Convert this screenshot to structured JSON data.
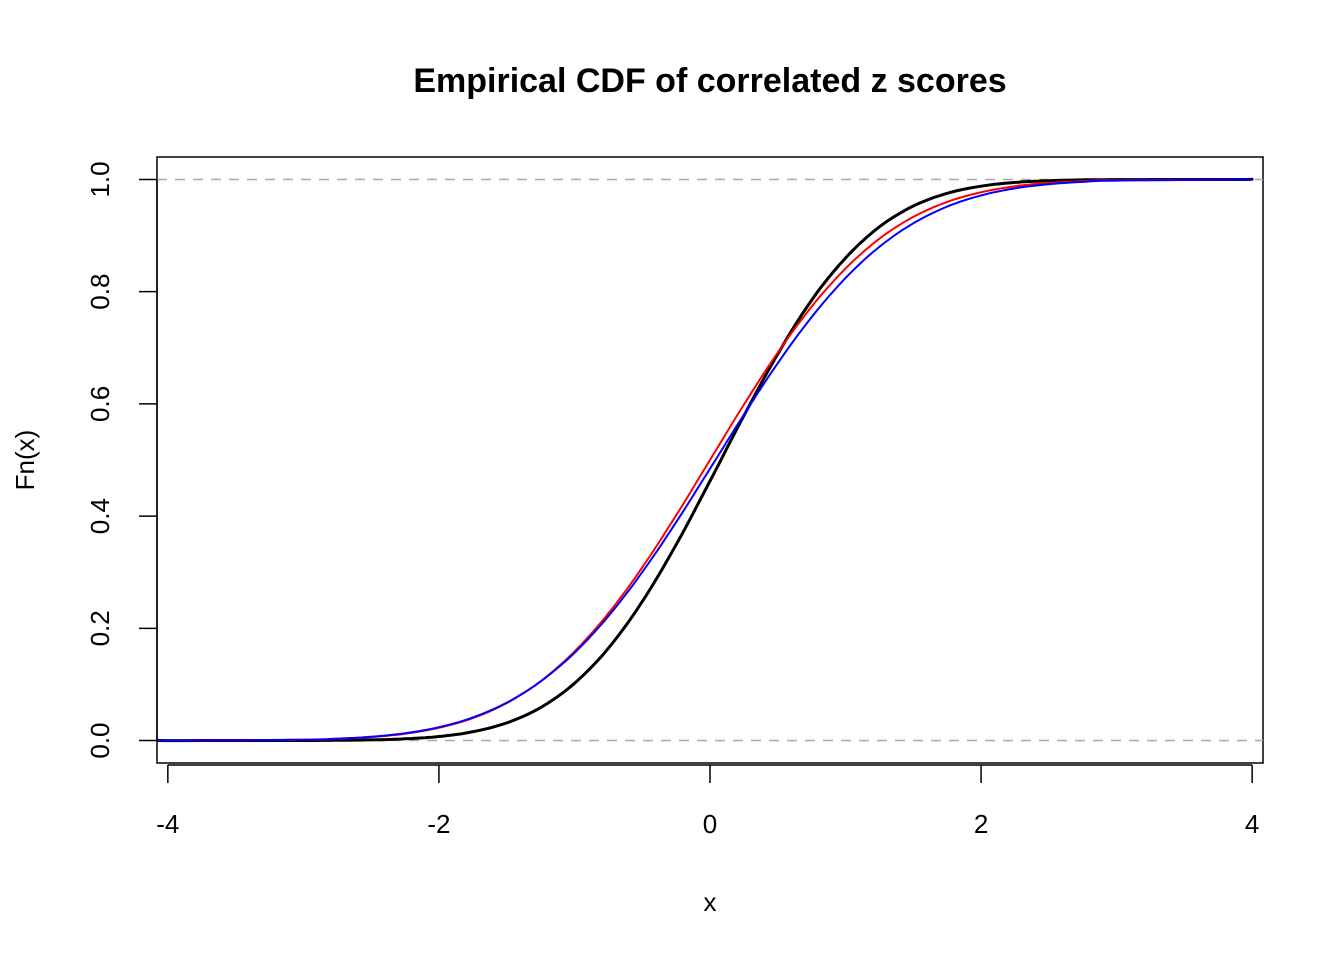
{
  "chart_data": {
    "type": "line",
    "title": "Empirical CDF of correlated z scores",
    "xlabel": "x",
    "ylabel": "Fn(x)",
    "xlim": [
      -4.08,
      4.08
    ],
    "ylim": [
      -0.04,
      1.04
    ],
    "xticks": [
      "-4",
      "-2",
      "0",
      "2",
      "4"
    ],
    "xtick_values": [
      -4,
      -2,
      0,
      2,
      4
    ],
    "yticks": [
      "0.0",
      "0.2",
      "0.4",
      "0.6",
      "0.8",
      "1.0"
    ],
    "ytick_values": [
      0,
      0.2,
      0.4,
      0.6,
      0.8,
      1.0
    ],
    "grid": false,
    "reference_lines": [
      0,
      1
    ],
    "reference_line_color": "#aaaaaa",
    "x": [
      -4,
      -3,
      -2.75,
      -2.5,
      -2.25,
      -2,
      -1.75,
      -1.5,
      -1.25,
      -1,
      -0.75,
      -0.5,
      -0.25,
      0,
      0.25,
      0.5,
      0.75,
      1,
      1.25,
      1.5,
      1.75,
      2,
      2.25,
      2.5,
      2.75,
      3,
      4
    ],
    "series": [
      {
        "color": "#000000",
        "values": [
          0,
          0.0001,
          0.0005,
          0.0012,
          0.0031,
          0.0072,
          0.0157,
          0.0315,
          0.0588,
          0.102,
          0.1645,
          0.2476,
          0.349,
          0.4625,
          0.579,
          0.689,
          0.785,
          0.86,
          0.9156,
          0.9526,
          0.9753,
          0.988,
          0.9947,
          0.9978,
          0.9992,
          0.9997,
          1
        ]
      },
      {
        "color": "#ff0000",
        "values": [
          3e-05,
          0.0013,
          0.003,
          0.0062,
          0.0122,
          0.0228,
          0.0401,
          0.0668,
          0.1056,
          0.1587,
          0.2266,
          0.3085,
          0.4013,
          0.5,
          0.5987,
          0.6915,
          0.7734,
          0.8413,
          0.8944,
          0.9332,
          0.9599,
          0.9772,
          0.9878,
          0.9938,
          0.997,
          0.9987,
          0.99997
        ]
      },
      {
        "color": "#0000ff",
        "values": [
          4e-05,
          0.0016,
          0.0034,
          0.0068,
          0.0131,
          0.0238,
          0.0411,
          0.0675,
          0.1053,
          0.1563,
          0.2215,
          0.3001,
          0.389,
          0.4845,
          0.5808,
          0.6726,
          0.7547,
          0.8243,
          0.88,
          0.9218,
          0.9516,
          0.9715,
          0.9841,
          0.9915,
          0.9957,
          0.998,
          0.99994
        ]
      }
    ]
  }
}
